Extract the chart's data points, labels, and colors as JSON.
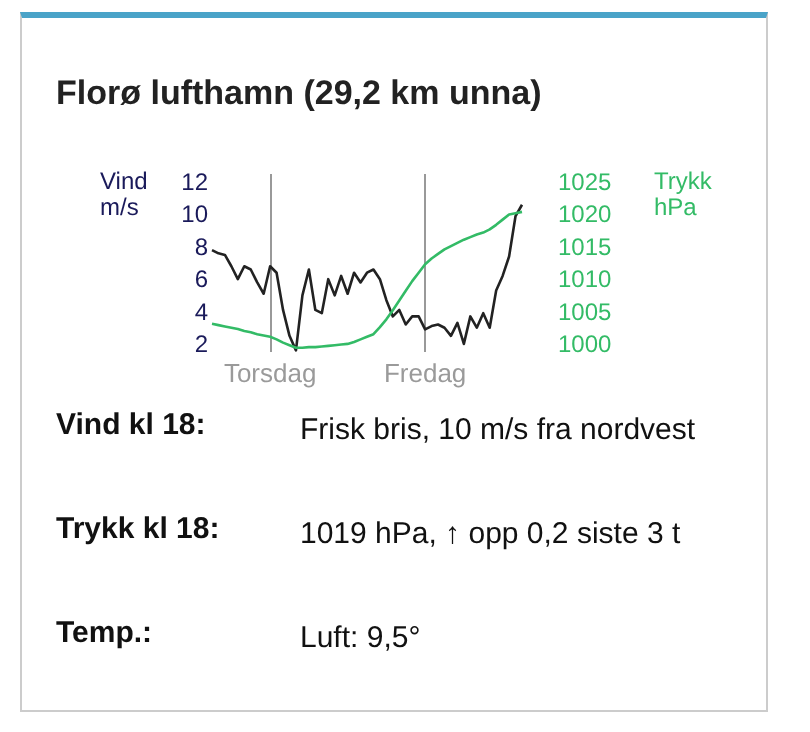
{
  "chart_data": {
    "type": "line",
    "title": "Florø lufthamn (29,2 km unna)",
    "ylabel": "Vind\nm/s",
    "y2label": "Trykk\nhPa",
    "categories": [
      null,
      null,
      null,
      null,
      null,
      null,
      null,
      null,
      null,
      "Torsdag",
      null,
      null,
      null,
      null,
      null,
      null,
      null,
      null,
      null,
      null,
      null,
      null,
      null,
      null,
      null,
      null,
      null,
      null,
      null,
      null,
      null,
      null,
      null,
      "Fredag",
      null,
      null,
      null,
      null,
      null,
      null,
      null,
      null,
      null,
      null,
      null,
      null,
      null,
      null,
      null
    ],
    "ylim": [
      1.5,
      12.5
    ],
    "yticks": [
      2,
      4,
      6,
      8,
      10,
      12
    ],
    "y2lim": [
      998.75,
      1026.25
    ],
    "y2ticks": [
      1000,
      1005,
      1010,
      1015,
      1020,
      1025
    ],
    "grid": "x",
    "marker": "none",
    "line_style": "solid",
    "series": [
      {
        "color": "#222222",
        "values": [
          7.8,
          7.6,
          7.5,
          6.8,
          6.0,
          6.8,
          6.6,
          5.8,
          5.1,
          6.8,
          6.4,
          4.1,
          2.5,
          1.6,
          5.0,
          6.6,
          4.1,
          3.9,
          6.0,
          5.0,
          6.2,
          5.1,
          6.4,
          5.8,
          6.4,
          6.6,
          6.0,
          4.7,
          3.7,
          4.1,
          3.2,
          3.7,
          3.7,
          2.9,
          3.1,
          3.2,
          3.0,
          2.5,
          3.3,
          2.0,
          3.7,
          3.0,
          3.9,
          3.0,
          5.3,
          6.2,
          7.4,
          9.9,
          10.6
        ]
      },
      {
        "color": "#33bb66",
        "axis": "y2",
        "values": [
          1003.1,
          1002.9,
          1002.7,
          1002.5,
          1002.3,
          1002.0,
          1001.8,
          1001.5,
          1001.3,
          1001.1,
          1000.7,
          1000.2,
          999.8,
          999.4,
          999.4,
          999.5,
          999.5,
          999.6,
          999.7,
          999.8,
          999.9,
          1000.0,
          1000.3,
          1000.7,
          1001.1,
          1001.5,
          1002.6,
          1003.8,
          1005.2,
          1006.7,
          1008.2,
          1009.7,
          1011.0,
          1012.3,
          1013.2,
          1013.9,
          1014.6,
          1015.1,
          1015.6,
          1016.1,
          1016.5,
          1016.9,
          1017.2,
          1017.7,
          1018.4,
          1019.2,
          1020.0,
          1020.2,
          1020.4
        ]
      }
    ],
    "annotations": [
      "Vind kl 18:",
      "Frisk bris, 10 m/s fra nordvest",
      "Trykk kl 18:",
      "1019 hPa, ↑ opp 0,2 siste 3 t",
      "Temp.:",
      "Luft: 9,5°"
    ]
  }
}
